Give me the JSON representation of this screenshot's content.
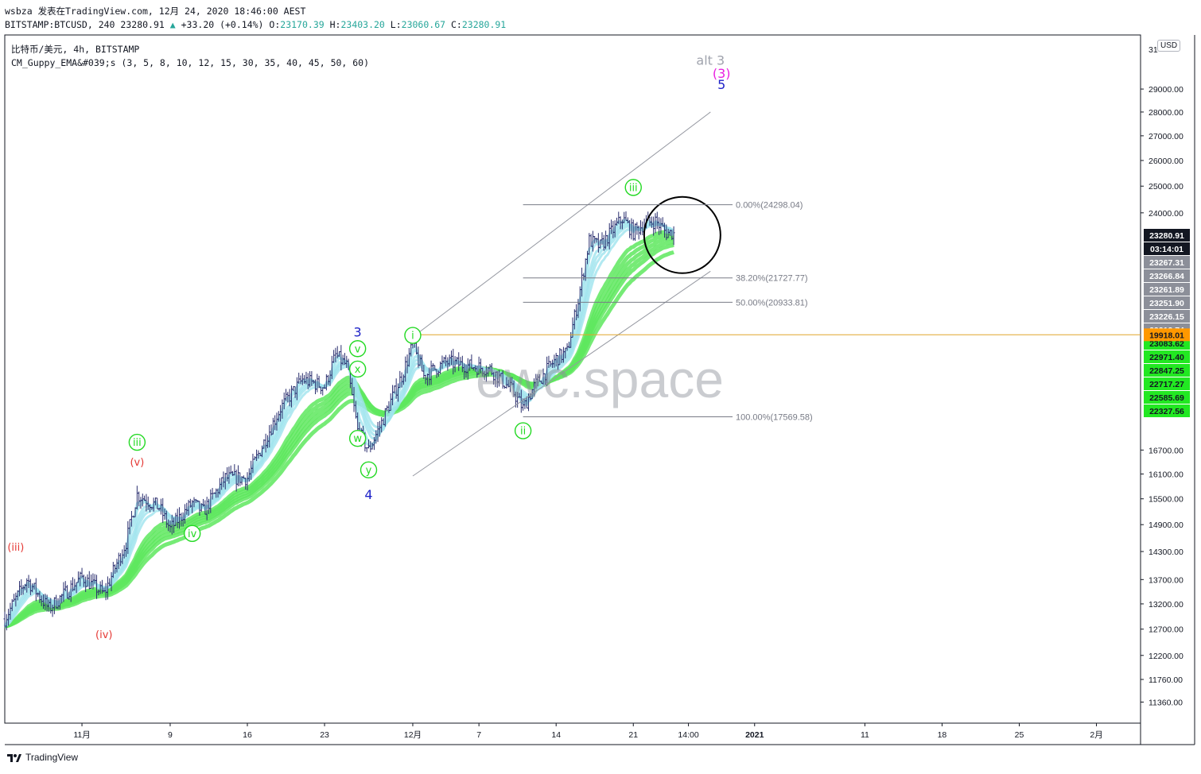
{
  "header": {
    "line1_user": "wsbza",
    "line1_published": "发表在TradingView.com,",
    "line1_date": "12月 24, 2020 18:46:00 AEST",
    "line2_symbol": "BITSTAMP:BTCUSD, 240",
    "line2_last": "23280.91",
    "line2_arrow": "▲",
    "line2_change": "+33.20 (+0.14%)",
    "line2_o_label": "O:",
    "line2_o": "23170.39",
    "line2_h_label": "H:",
    "line2_h": "23403.20",
    "line2_l_label": "L:",
    "line2_l": "23060.67",
    "line2_c_label": "C:",
    "line2_c": "23280.91"
  },
  "legend": {
    "title": "比特币/美元, 4h, BITSTAMP",
    "indicator": "CM_Guppy_EMA&#039;s (3, 5, 8, 10, 12, 15, 30, 35, 40, 45, 50, 60)"
  },
  "currency": "USD",
  "brand": "TradingView",
  "watermark": "ewc.space",
  "colors": {
    "candle": "#2a2e6e",
    "ema_fast": "#9fe3ee",
    "ema_slow": "#5ee85e",
    "ema_neutral": "#9e9e9e",
    "fib_line": "#787b86",
    "channel": "#9598a1",
    "hline": "#e0a52b",
    "wave_green": "#22d922",
    "wave_red": "#e53935",
    "wave_blue": "#1e22c8",
    "wave_magenta": "#e91ee0",
    "alt_grey": "#a0a3ad"
  },
  "chart_data": {
    "type": "candlestick",
    "symbol": "BITSTAMP:BTCUSD",
    "interval": "240",
    "y_scale": "log",
    "ylim": [
      11000,
      31500
    ],
    "x_range": [
      "2020-10-25",
      "2021-02-05"
    ],
    "x_ticks": [
      {
        "date": "2020-11-01",
        "label": "11月"
      },
      {
        "date": "2020-11-09",
        "label": "9"
      },
      {
        "date": "2020-11-16",
        "label": "16"
      },
      {
        "date": "2020-11-23",
        "label": "23"
      },
      {
        "date": "2020-12-01",
        "label": "12月"
      },
      {
        "date": "2020-12-07",
        "label": "7"
      },
      {
        "date": "2020-12-14",
        "label": "14"
      },
      {
        "date": "2020-12-21",
        "label": "21"
      },
      {
        "date": "2020-12-26",
        "label": "14:00"
      },
      {
        "date": "2021-01-01",
        "label": "2021"
      },
      {
        "date": "2021-01-11",
        "label": "11"
      },
      {
        "date": "2021-01-18",
        "label": "18"
      },
      {
        "date": "2021-01-25",
        "label": "25"
      },
      {
        "date": "2021-02-01",
        "label": "2月"
      }
    ],
    "y_ticks": [
      11360,
      11760,
      12200,
      12700,
      13200,
      13700,
      14300,
      14900,
      15500,
      16100,
      16700,
      24000,
      25000,
      26000,
      27000,
      28000,
      29000
    ],
    "y_tick_labels": [
      "11360.00",
      "11760.00",
      "12200.00",
      "12700.00",
      "13200.00",
      "13700.00",
      "14300.00",
      "14900.00",
      "15500.00",
      "16100.00",
      "16700.00",
      "24000.00",
      "25000.00",
      "26000.00",
      "27000.00",
      "28000.00",
      "29000.00"
    ],
    "top_tick_label": "31",
    "price_path": [
      [
        "2020-10-25",
        12900
      ],
      [
        "2020-10-27",
        13700
      ],
      [
        "2020-10-29",
        13100
      ],
      [
        "2020-11-01",
        13750
      ],
      [
        "2020-11-03",
        13400
      ],
      [
        "2020-11-05",
        14500
      ],
      [
        "2020-11-06",
        15600
      ],
      [
        "2020-11-08",
        15300
      ],
      [
        "2020-11-09",
        14800
      ],
      [
        "2020-11-11",
        15400
      ],
      [
        "2020-11-12",
        15200
      ],
      [
        "2020-11-14",
        16000
      ],
      [
        "2020-11-16",
        16000
      ],
      [
        "2020-11-19",
        17800
      ],
      [
        "2020-11-21",
        18600
      ],
      [
        "2020-11-23",
        18400
      ],
      [
        "2020-11-24",
        19300
      ],
      [
        "2020-11-25",
        19000
      ],
      [
        "2020-11-26",
        17200
      ],
      [
        "2020-11-27",
        16700
      ],
      [
        "2020-11-28",
        17300
      ],
      [
        "2020-11-30",
        18700
      ],
      [
        "2020-12-01",
        19600
      ],
      [
        "2020-12-02",
        18700
      ],
      [
        "2020-12-04",
        19100
      ],
      [
        "2020-12-06",
        19000
      ],
      [
        "2020-12-08",
        18900
      ],
      [
        "2020-12-10",
        18300
      ],
      [
        "2020-12-11",
        17800
      ],
      [
        "2020-12-12",
        18400
      ],
      [
        "2020-12-14",
        19200
      ],
      [
        "2020-12-15",
        19400
      ],
      [
        "2020-12-16",
        21000
      ],
      [
        "2020-12-17",
        23000
      ],
      [
        "2020-12-18",
        22800
      ],
      [
        "2020-12-20",
        23800
      ],
      [
        "2020-12-21",
        23300
      ],
      [
        "2020-12-22",
        23600
      ],
      [
        "2020-12-23",
        23700
      ],
      [
        "2020-12-24",
        23280.91
      ]
    ],
    "fib_levels": [
      {
        "label": "0.00%(24298.04)",
        "price": 24298.04
      },
      {
        "label": "38.20%(21727.77)",
        "price": 21727.77
      },
      {
        "label": "50.00%(20933.81)",
        "price": 20933.81
      },
      {
        "label": "100.00%(17569.58)",
        "price": 17569.58
      }
    ],
    "horizontal_line": 19918.01,
    "channel_lines": [
      {
        "from": [
          "2020-12-01",
          19850
        ],
        "to": [
          "2020-12-28",
          28000
        ]
      },
      {
        "from": [
          "2020-12-01",
          16050
        ],
        "to": [
          "2020-12-28",
          21950
        ]
      }
    ],
    "wave_labels": [
      {
        "text": "(iii)",
        "date": "2020-10-26",
        "price": 14400,
        "style": "red"
      },
      {
        "text": "(iv)",
        "date": "2020-11-03",
        "price": 12600,
        "style": "red"
      },
      {
        "text": "(v)",
        "date": "2020-11-06",
        "price": 16400,
        "style": "red"
      },
      {
        "text": "iii",
        "date": "2020-11-06",
        "price": 16900,
        "style": "green-circle"
      },
      {
        "text": "iv",
        "date": "2020-11-11",
        "price": 14700,
        "style": "green-circle"
      },
      {
        "text": "3",
        "date": "2020-11-26",
        "price": 20000,
        "style": "blue"
      },
      {
        "text": "v",
        "date": "2020-11-26",
        "price": 19500,
        "style": "green-circle"
      },
      {
        "text": "x",
        "date": "2020-11-26",
        "price": 18900,
        "style": "green-circle"
      },
      {
        "text": "w",
        "date": "2020-11-26",
        "price": 17000,
        "style": "green-circle"
      },
      {
        "text": "y",
        "date": "2020-11-27",
        "price": 16200,
        "style": "green-circle"
      },
      {
        "text": "4",
        "date": "2020-11-27",
        "price": 15600,
        "style": "blue"
      },
      {
        "text": "i",
        "date": "2020-12-01",
        "price": 19900,
        "style": "green-circle"
      },
      {
        "text": "ii",
        "date": "2020-12-11",
        "price": 17200,
        "style": "green-circle"
      },
      {
        "text": "iii",
        "date": "2020-12-21",
        "price": 24950,
        "style": "green-circle"
      },
      {
        "text": "alt 3",
        "date": "2020-12-28",
        "price": 30300,
        "style": "grey"
      },
      {
        "text": "(3)",
        "date": "2020-12-29",
        "price": 29700,
        "style": "magenta"
      },
      {
        "text": "5",
        "date": "2020-12-29",
        "price": 29200,
        "style": "blue"
      }
    ],
    "price_tags": [
      {
        "label": "23280.91",
        "kind": "last"
      },
      {
        "label": "03:14:01",
        "kind": "countdown"
      },
      {
        "label": "23267.31",
        "kind": "ema-grey"
      },
      {
        "label": "23266.84",
        "kind": "ema-grey"
      },
      {
        "label": "23261.89",
        "kind": "ema-grey"
      },
      {
        "label": "23251.90",
        "kind": "ema-grey"
      },
      {
        "label": "23226.15",
        "kind": "ema-grey"
      },
      {
        "label": "23212.74",
        "kind": "ema-grey"
      },
      {
        "label": "23083.62",
        "kind": "ema-green"
      },
      {
        "label": "22971.40",
        "kind": "ema-green"
      },
      {
        "label": "22847.25",
        "kind": "ema-green"
      },
      {
        "label": "22717.27",
        "kind": "ema-green"
      },
      {
        "label": "22585.69",
        "kind": "ema-green"
      },
      {
        "label": "22327.56",
        "kind": "ema-green"
      },
      {
        "label": "19918.01",
        "kind": "hline"
      }
    ],
    "annotation_circle": {
      "center": [
        "2020-12-24",
        23200
      ]
    },
    "grid": false
  }
}
